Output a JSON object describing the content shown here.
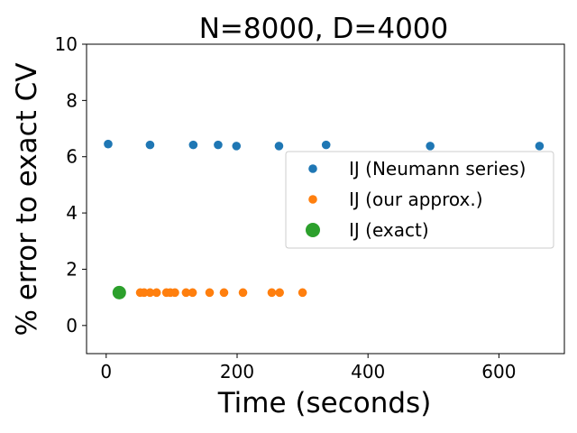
{
  "chart_data": {
    "type": "scatter",
    "title": "N=8000, D=4000",
    "xlabel": "Time (seconds)",
    "ylabel": "% error to exact CV",
    "xlim": [
      -30,
      700
    ],
    "ylim": [
      -1,
      10
    ],
    "xticks": [
      0,
      200,
      400,
      600
    ],
    "yticks": [
      0,
      2,
      4,
      6,
      8,
      10
    ],
    "grid": false,
    "legend_position": "center-right",
    "series": [
      {
        "name": "IJ (Neumann series)",
        "color": "#1f77b4",
        "marker": "small-circle",
        "points": [
          {
            "x": 3,
            "y": 6.45
          },
          {
            "x": 67,
            "y": 6.42
          },
          {
            "x": 133,
            "y": 6.42
          },
          {
            "x": 171,
            "y": 6.42
          },
          {
            "x": 199,
            "y": 6.38
          },
          {
            "x": 264,
            "y": 6.38
          },
          {
            "x": 336,
            "y": 6.42
          },
          {
            "x": 495,
            "y": 6.38
          },
          {
            "x": 662,
            "y": 6.38
          }
        ]
      },
      {
        "name": "IJ (our approx.)",
        "color": "#ff7f0e",
        "marker": "small-circle",
        "points": [
          {
            "x": 52,
            "y": 1.17
          },
          {
            "x": 58,
            "y": 1.17
          },
          {
            "x": 67,
            "y": 1.17
          },
          {
            "x": 77,
            "y": 1.17
          },
          {
            "x": 92,
            "y": 1.17
          },
          {
            "x": 98,
            "y": 1.17
          },
          {
            "x": 105,
            "y": 1.17
          },
          {
            "x": 122,
            "y": 1.17
          },
          {
            "x": 132,
            "y": 1.17
          },
          {
            "x": 158,
            "y": 1.17
          },
          {
            "x": 180,
            "y": 1.17
          },
          {
            "x": 209,
            "y": 1.17
          },
          {
            "x": 253,
            "y": 1.17
          },
          {
            "x": 265,
            "y": 1.17
          },
          {
            "x": 300,
            "y": 1.17
          }
        ]
      },
      {
        "name": "IJ (exact)",
        "color": "#2ca02c",
        "marker": "large-circle",
        "points": [
          {
            "x": 20,
            "y": 1.17
          }
        ]
      }
    ]
  }
}
